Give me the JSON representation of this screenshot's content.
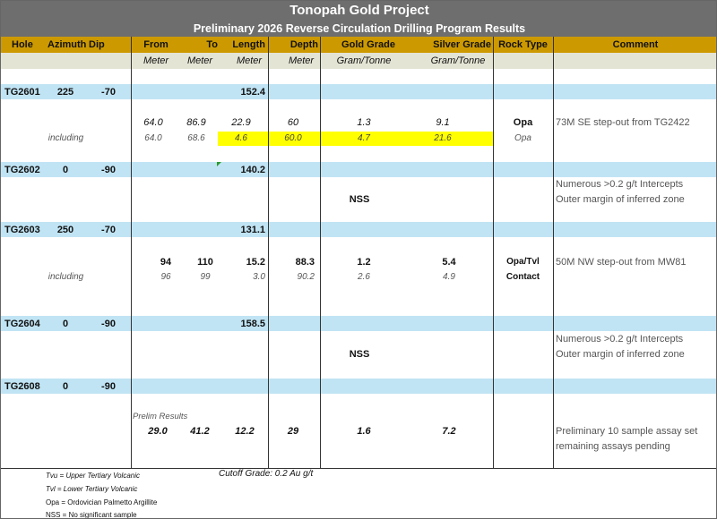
{
  "title": "Tonopah Gold Project",
  "subtitle": "Preliminary 2026 Reverse Circulation Drilling Program Results",
  "headers": {
    "hole": "Hole",
    "azimuth": "Azimuth",
    "dip": "Dip",
    "from": "From",
    "to": "To",
    "length": "Length",
    "depth": "Depth",
    "gold": "Gold Grade",
    "silver": "Silver Grade",
    "rock": "Rock Type",
    "comment": "Comment"
  },
  "units": {
    "from": "Meter",
    "to": "Meter",
    "length": "Meter",
    "depth": "Meter",
    "gold": "Gram/Tonne",
    "silver": "Gram/Tonne"
  },
  "colors": {
    "title_bg": "#6e6e6e",
    "header_bg": "#cc9900",
    "units_bg": "#e4e4d4",
    "hole_row_bg": "#c0e4f4",
    "highlight": "#ffff00"
  },
  "holes": [
    {
      "hole": "TG2601",
      "azimuth": "225",
      "dip": "-70",
      "length": "152.4",
      "main": {
        "from": "64.0",
        "to": "86.9",
        "length": "22.9",
        "depth": "60",
        "gold": "1.3",
        "silver": "9.1",
        "rock": "Opa",
        "comment": "73M SE step-out from TG2422"
      },
      "including": {
        "label": "including",
        "from": "64.0",
        "to": "68.6",
        "length": "4.6",
        "depth": "60.0",
        "gold": "4.7",
        "silver": "21.6",
        "rock": "Opa"
      }
    },
    {
      "hole": "TG2602",
      "azimuth": "0",
      "dip": "-90",
      "length": "140.2",
      "result": "NSS",
      "comment1": "Numerous >0.2 g/t Intercepts",
      "comment2": "Outer margin of inferred zone"
    },
    {
      "hole": "TG2603",
      "azimuth": "250",
      "dip": "-70",
      "length": "131.1",
      "main": {
        "from": "94",
        "to": "110",
        "length": "15.2",
        "depth": "88.3",
        "gold": "1.2",
        "silver": "5.4",
        "rock": "Opa/Tvl",
        "comment": "50M NW step-out from MW81"
      },
      "including": {
        "label": "including",
        "from": "96",
        "to": "99",
        "length": "3.0",
        "depth": "90.2",
        "gold": "2.6",
        "silver": "4.9",
        "rock": "Contact"
      }
    },
    {
      "hole": "TG2604",
      "azimuth": "0",
      "dip": "-90",
      "length": "158.5",
      "result": "NSS",
      "comment1": "Numerous >0.2 g/t Intercepts",
      "comment2": "Outer margin of inferred zone"
    },
    {
      "hole": "TG2608",
      "azimuth": "0",
      "dip": "-90",
      "note": "Prelim Results",
      "main": {
        "from": "29.0",
        "to": "41.2",
        "length": "12.2",
        "depth": "29",
        "gold": "1.6",
        "silver": "7.2",
        "comment1": "Preliminary 10 sample assay set",
        "comment2": "remaining assays pending"
      }
    }
  ],
  "legend": [
    "Tvu = Upper Tertiary Volcanic",
    "Tvl = Lower Tertiary Volcanic",
    "Opa = Ordovician Palmetto Argillite",
    "NSS = No significant sample"
  ],
  "cutoff": "Cutoff Grade: 0.2 Au g/t"
}
